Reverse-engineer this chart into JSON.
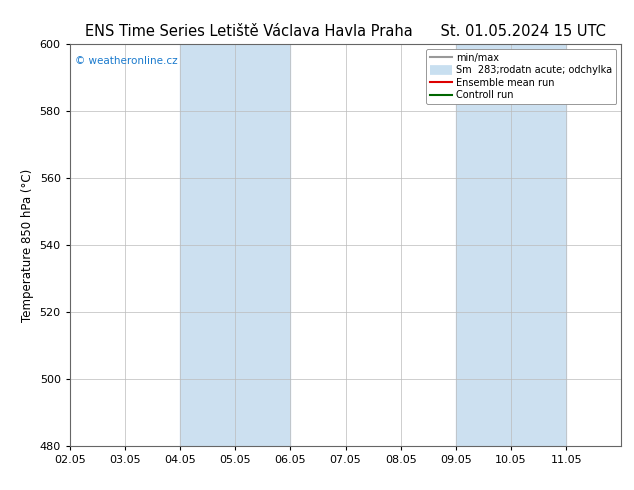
{
  "title_left": "ENS Time Series Letiště Václava Havla Praha",
  "title_right": "St. 01.05.2024 15 UTC",
  "ylabel": "Temperature 850 hPa (°C)",
  "ylim": [
    480,
    600
  ],
  "yticks": [
    480,
    500,
    520,
    540,
    560,
    580,
    600
  ],
  "xlim": [
    0,
    10
  ],
  "xtick_labels": [
    "02.05",
    "03.05",
    "04.05",
    "05.05",
    "06.05",
    "07.05",
    "08.05",
    "09.05",
    "10.05",
    "11.05"
  ],
  "xtick_positions": [
    0,
    1,
    2,
    3,
    4,
    5,
    6,
    7,
    8,
    9
  ],
  "shade_bands": [
    {
      "xmin": 2.0,
      "xmax": 4.0,
      "color": "#cce0f0"
    },
    {
      "xmin": 7.0,
      "xmax": 9.0,
      "color": "#cce0f0"
    }
  ],
  "watermark": "© weatheronline.cz",
  "watermark_color": "#1a7acd",
  "legend_items": [
    {
      "label": "min/max",
      "color": "#999999",
      "lw": 1.5
    },
    {
      "label": "Sm  283;rodatn acute; odchylka",
      "color": "#c8dff0",
      "lw": 7
    },
    {
      "label": "Ensemble mean run",
      "color": "#dd0000",
      "lw": 1.5
    },
    {
      "label": "Controll run",
      "color": "#006600",
      "lw": 1.5
    }
  ],
  "bg_color": "#ffffff",
  "grid_color": "#bbbbbb",
  "title_fontsize": 10.5,
  "axis_fontsize": 8.5,
  "tick_fontsize": 8
}
